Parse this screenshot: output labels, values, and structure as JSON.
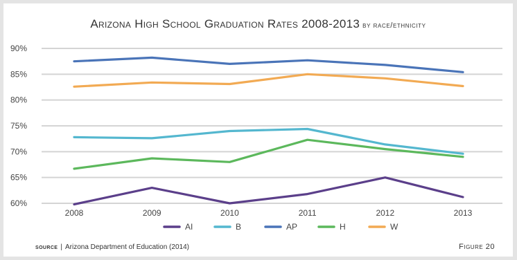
{
  "chart_data": {
    "type": "line",
    "title": "Arizona High School Graduation Rates 2008-2013",
    "subtitle": "by race/ethnicity",
    "x": [
      "2008",
      "2009",
      "2010",
      "2011",
      "2012",
      "2013"
    ],
    "ylim": [
      60,
      90
    ],
    "yticks": [
      "90%",
      "85%",
      "80%",
      "75%",
      "70%",
      "65%",
      "60%"
    ],
    "ytick_values": [
      90,
      85,
      80,
      75,
      70,
      65,
      60
    ],
    "grid": "horizontal",
    "legend": "bottom-center",
    "series": [
      {
        "name": "AI",
        "color": "#5b3f8a",
        "values": [
          59.8,
          63.0,
          60.0,
          61.8,
          65.0,
          61.2
        ]
      },
      {
        "name": "B",
        "color": "#54b7cf",
        "values": [
          72.8,
          72.6,
          74.0,
          74.4,
          71.4,
          69.6
        ]
      },
      {
        "name": "AP",
        "color": "#4a74b8",
        "values": [
          87.5,
          88.2,
          87.0,
          87.7,
          86.8,
          85.4
        ]
      },
      {
        "name": "H",
        "color": "#5cb85c",
        "values": [
          66.7,
          68.7,
          68.0,
          72.3,
          70.5,
          69.0
        ]
      },
      {
        "name": "W",
        "color": "#f2aa53",
        "values": [
          82.6,
          83.4,
          83.1,
          85.0,
          84.2,
          82.7
        ]
      }
    ]
  },
  "footer": {
    "source_label": "source",
    "source_text": "Arizona Department of Education (2014)",
    "figure_label": "Figure 20"
  }
}
